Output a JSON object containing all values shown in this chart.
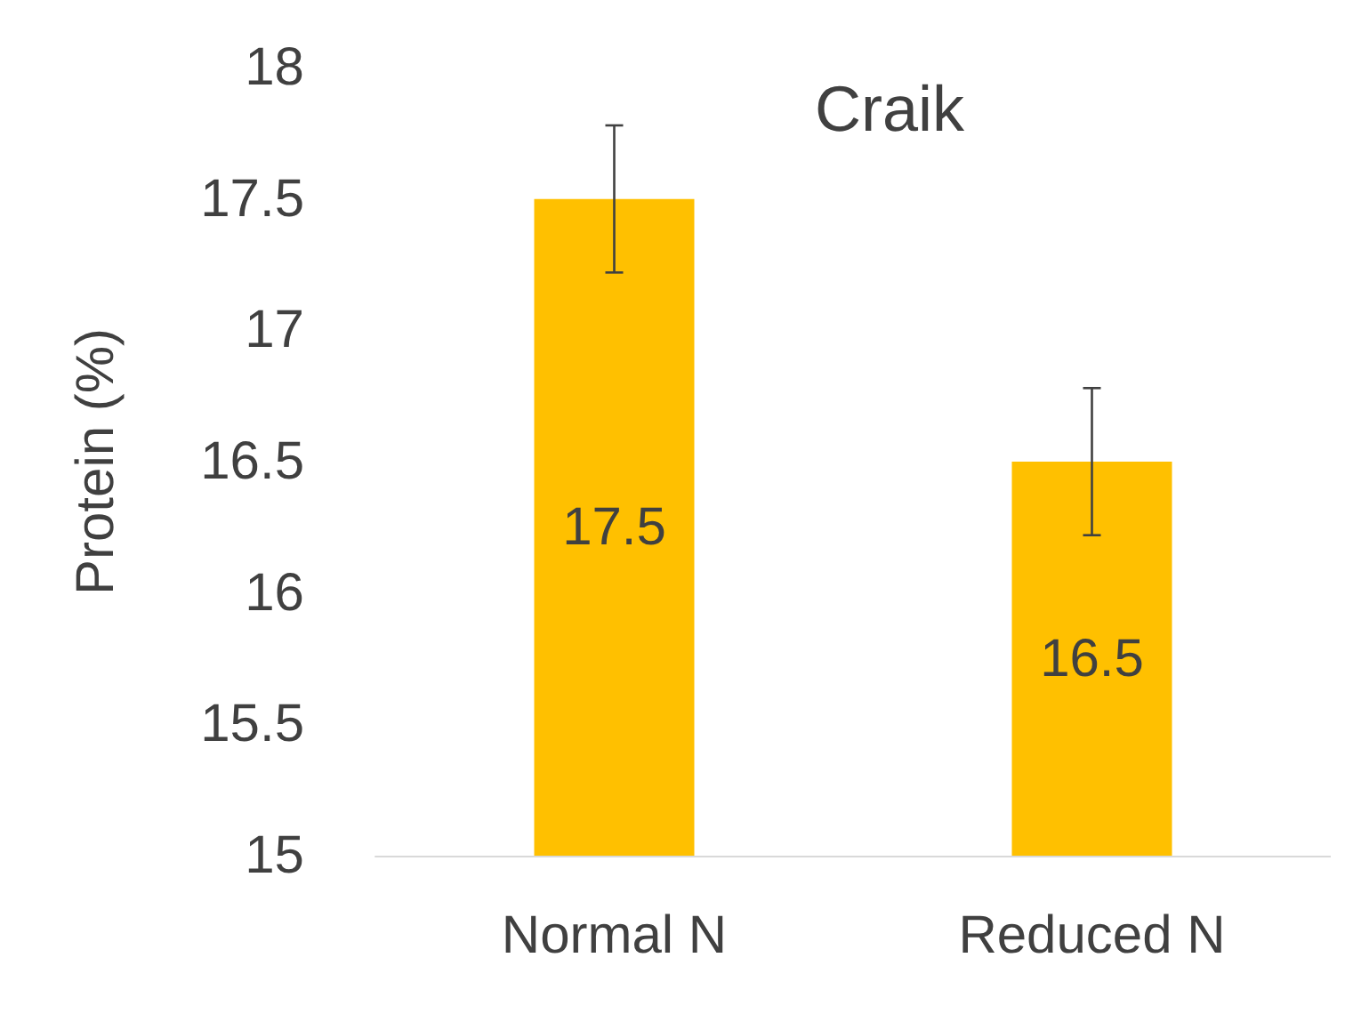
{
  "chart_data": {
    "type": "bar",
    "title": "Craik",
    "ylabel": "Protein (%)",
    "categories": [
      "Normal N",
      "Reduced N"
    ],
    "values": [
      17.5,
      16.5
    ],
    "color": "#ffc000",
    "errors": [
      0.28,
      0.28
    ],
    "ylim": [
      15,
      18
    ],
    "yticks": [
      15,
      15.5,
      16,
      16.5,
      17,
      17.5,
      18
    ],
    "data_labels": true,
    "grid": false
  }
}
